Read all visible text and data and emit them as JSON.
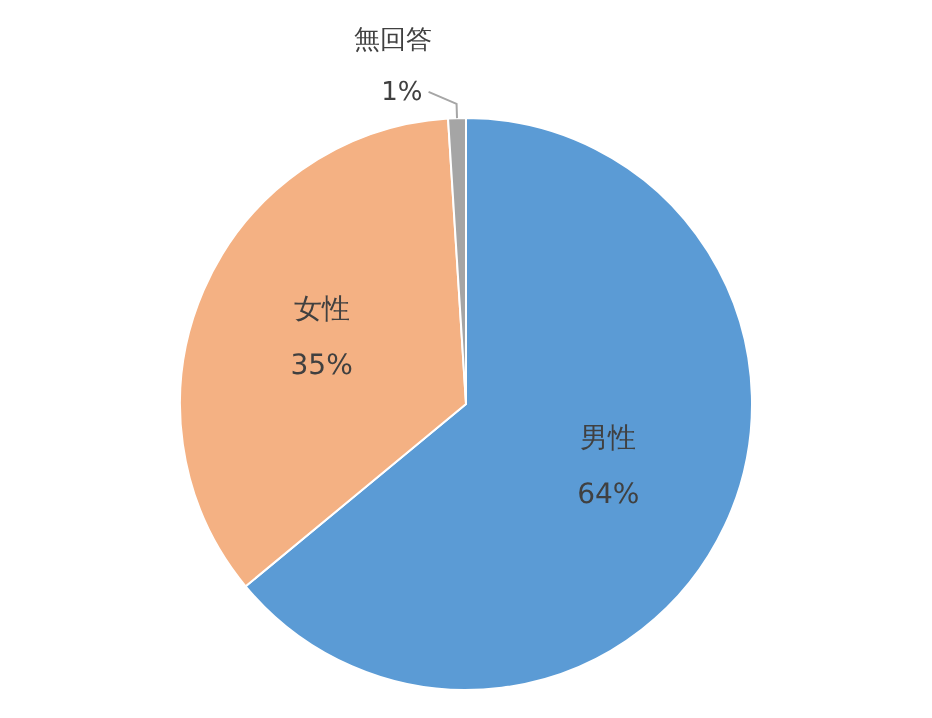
{
  "chart_data": {
    "type": "pie",
    "categories": [
      "男性",
      "女性",
      "無回答"
    ],
    "values": [
      64,
      35,
      1
    ],
    "colors": [
      "#5b9bd5",
      "#f4b183",
      "#a5a5a5"
    ],
    "value_labels": [
      "64%",
      "35%",
      "1%"
    ]
  }
}
